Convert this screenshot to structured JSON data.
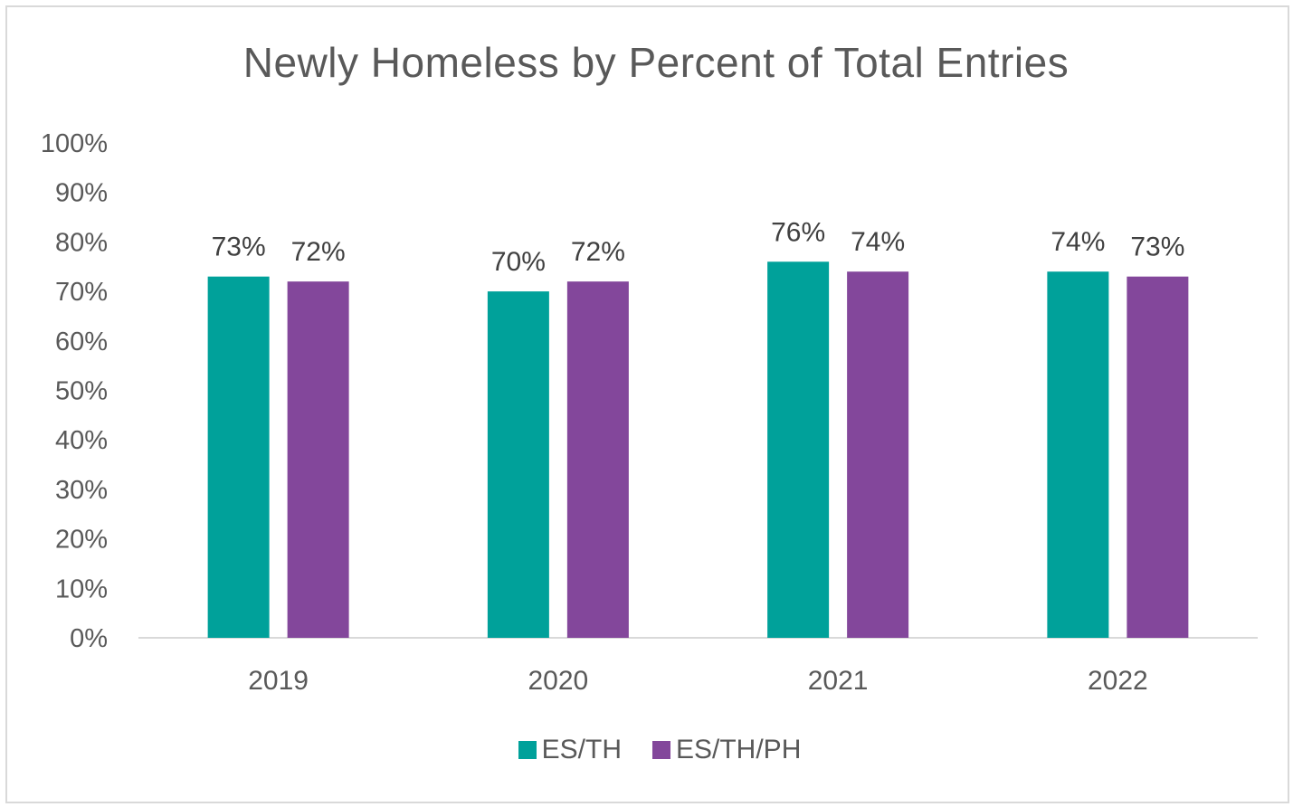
{
  "chart_data": {
    "type": "bar",
    "title": "Newly Homeless by Percent of Total Entries",
    "categories": [
      "2019",
      "2020",
      "2021",
      "2022"
    ],
    "series": [
      {
        "name": "ES/TH",
        "color": "#00a19a",
        "values": [
          73,
          70,
          76,
          74
        ],
        "labels": [
          "73%",
          "70%",
          "76%",
          "74%"
        ]
      },
      {
        "name": "ES/TH/PH",
        "color": "#83479b",
        "values": [
          72,
          72,
          74,
          73
        ],
        "labels": [
          "72%",
          "72%",
          "74%",
          "73%"
        ]
      }
    ],
    "y_ticks": [
      "0%",
      "10%",
      "20%",
      "30%",
      "40%",
      "50%",
      "60%",
      "70%",
      "80%",
      "90%",
      "100%"
    ],
    "ylim": [
      0,
      100
    ],
    "grid": false,
    "legend_position": "bottom"
  }
}
